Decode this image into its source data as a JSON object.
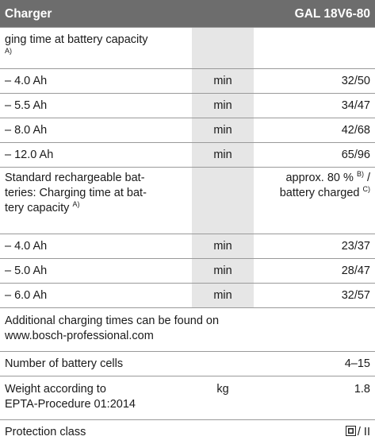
{
  "header": {
    "left": "Charger",
    "right": "GAL 18V6-80"
  },
  "rows": [
    {
      "label": "ging time at battery capacity",
      "label_note": "A)"
    },
    {
      "label": "– 4.0 Ah",
      "unit": "min",
      "value": "32/50"
    },
    {
      "label": "– 5.5 Ah",
      "unit": "min",
      "value": "34/47"
    },
    {
      "label": "– 8.0 Ah",
      "unit": "min",
      "value": "42/68"
    },
    {
      "label": "– 12.0 Ah",
      "unit": "min",
      "value": "65/96"
    },
    {
      "label_lines": [
        "Standard rechargeable bat-",
        "teries: Charging time at bat-",
        "tery capacity"
      ],
      "label_note": "A)",
      "value_parts": [
        "approx. 80 %",
        "B)",
        "/",
        "battery charged",
        "C)"
      ]
    },
    {
      "label": "– 4.0 Ah",
      "unit": "min",
      "value": "23/37"
    },
    {
      "label": "– 5.0 Ah",
      "unit": "min",
      "value": "28/47"
    },
    {
      "label": "– 6.0 Ah",
      "unit": "min",
      "value": "32/57"
    },
    {
      "label_lines": [
        "Additional charging times can be found on",
        "www.bosch-professional.com"
      ]
    },
    {
      "label": "Number of battery cells",
      "value": "4–15"
    },
    {
      "label_lines": [
        "Weight according to",
        "EPTA-Procedure 01:2014"
      ],
      "unit": "kg",
      "value": "1.8"
    },
    {
      "label": "Protection class",
      "value": "/ II"
    }
  ]
}
